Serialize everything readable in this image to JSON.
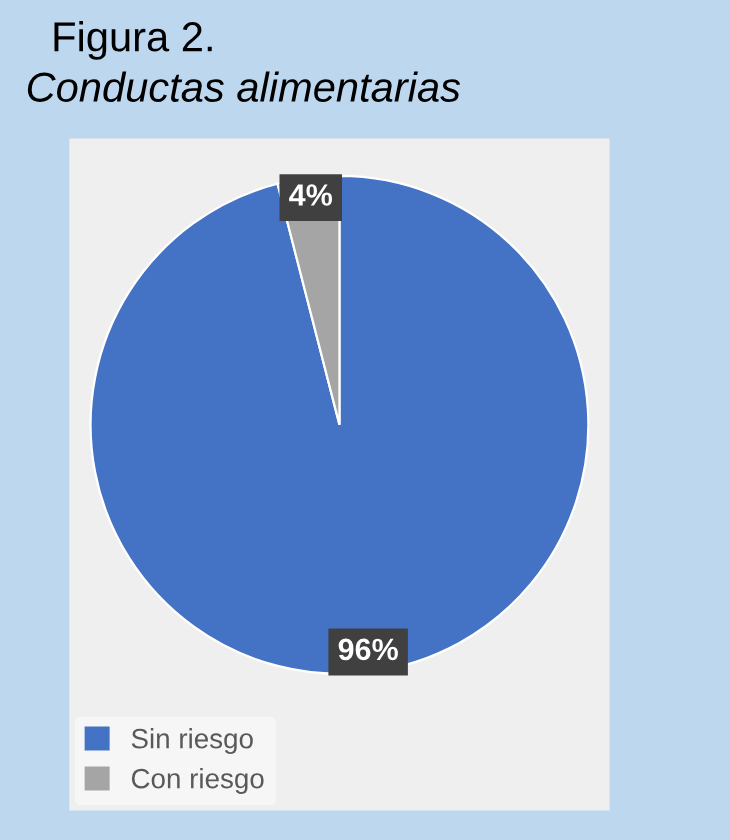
{
  "chart_data": {
    "type": "pie",
    "title": "Figura 2.",
    "subtitle": "Conductas alimentarias",
    "categories": [
      "Sin riesgo",
      "Con riesgo"
    ],
    "values": [
      96,
      4
    ],
    "colors": [
      "#4472c4",
      "#a5a5a5"
    ],
    "value_labels": [
      "96%",
      "4%"
    ],
    "legend": "bottom left"
  }
}
